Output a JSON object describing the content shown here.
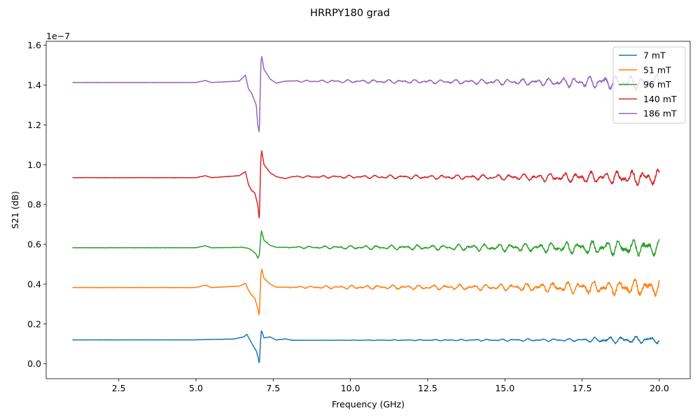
{
  "chart_data": {
    "type": "line",
    "title": "HRRPY180 grad",
    "xlabel": "Frequency (GHz)",
    "ylabel": "S21 (dB)",
    "y_offset_label": "1e−7",
    "xlim": [
      0.15,
      21.0
    ],
    "ylim": [
      -0.075,
      1.62
    ],
    "xticks": [
      2.5,
      5.0,
      7.5,
      10.0,
      12.5,
      15.0,
      17.5,
      20.0
    ],
    "xtick_labels": [
      "2.5",
      "5.0",
      "7.5",
      "10.0",
      "12.5",
      "15.0",
      "17.5",
      "20.0"
    ],
    "yticks": [
      0.0,
      0.2,
      0.4,
      0.6,
      0.8,
      1.0,
      1.2,
      1.4,
      1.6
    ],
    "ytick_labels": [
      "0.0",
      "0.2",
      "0.4",
      "0.6",
      "0.8",
      "1.0",
      "1.2",
      "1.4",
      "1.6"
    ],
    "legend_position": "top-right",
    "grid": false,
    "series": [
      {
        "name": "7 mT",
        "color": "#1f77b4",
        "baseline": 0.12,
        "points": [
          [
            1.0,
            0.12
          ],
          [
            5.0,
            0.12
          ],
          [
            5.3,
            0.122
          ],
          [
            6.2,
            0.124
          ],
          [
            6.55,
            0.135
          ],
          [
            6.65,
            0.148
          ],
          [
            6.75,
            0.118
          ],
          [
            6.85,
            0.09
          ],
          [
            6.95,
            0.065
          ],
          [
            7.0,
            0.04
          ],
          [
            7.05,
            0.0
          ],
          [
            7.1,
            0.14
          ],
          [
            7.12,
            0.168
          ],
          [
            7.2,
            0.13
          ],
          [
            7.4,
            0.135
          ],
          [
            7.6,
            0.12
          ],
          [
            7.9,
            0.125
          ],
          [
            8.1,
            0.118
          ],
          [
            20.0,
            0.12
          ]
        ],
        "osc": [
          [
            8.5,
            0.0
          ],
          [
            14.0,
            0.003
          ],
          [
            17.5,
            0.006
          ],
          [
            18.3,
            0.012
          ],
          [
            20.0,
            0.015
          ]
        ]
      },
      {
        "name": "51 mT",
        "color": "#ff7f0e",
        "baseline": 0.383,
        "points": [
          [
            1.0,
            0.383
          ],
          [
            5.0,
            0.383
          ],
          [
            5.3,
            0.395
          ],
          [
            5.5,
            0.383
          ],
          [
            6.4,
            0.39
          ],
          [
            6.6,
            0.405
          ],
          [
            6.7,
            0.37
          ],
          [
            6.8,
            0.345
          ],
          [
            6.9,
            0.33
          ],
          [
            7.0,
            0.28
          ],
          [
            7.05,
            0.24
          ],
          [
            7.1,
            0.45
          ],
          [
            7.13,
            0.475
          ],
          [
            7.2,
            0.43
          ],
          [
            7.4,
            0.4
          ],
          [
            7.6,
            0.385
          ],
          [
            20.0,
            0.383
          ]
        ],
        "osc": [
          [
            8.0,
            0.003
          ],
          [
            10.0,
            0.007
          ],
          [
            13.0,
            0.009
          ],
          [
            15.5,
            0.014
          ],
          [
            17.0,
            0.022
          ],
          [
            18.5,
            0.028
          ],
          [
            20.0,
            0.033
          ]
        ]
      },
      {
        "name": "96 mT",
        "color": "#2ca02c",
        "baseline": 0.583,
        "points": [
          [
            1.0,
            0.583
          ],
          [
            5.0,
            0.583
          ],
          [
            5.3,
            0.593
          ],
          [
            5.5,
            0.583
          ],
          [
            6.5,
            0.585
          ],
          [
            6.7,
            0.58
          ],
          [
            6.85,
            0.565
          ],
          [
            6.95,
            0.55
          ],
          [
            7.0,
            0.53
          ],
          [
            7.05,
            0.545
          ],
          [
            7.1,
            0.64
          ],
          [
            7.12,
            0.67
          ],
          [
            7.2,
            0.62
          ],
          [
            7.4,
            0.595
          ],
          [
            7.6,
            0.585
          ],
          [
            20.0,
            0.583
          ]
        ],
        "osc": [
          [
            8.0,
            0.003
          ],
          [
            10.0,
            0.007
          ],
          [
            13.0,
            0.01
          ],
          [
            15.5,
            0.016
          ],
          [
            17.0,
            0.022
          ],
          [
            18.5,
            0.028
          ],
          [
            20.0,
            0.032
          ]
        ]
      },
      {
        "name": "140 mT",
        "color": "#d62728",
        "baseline": 0.935,
        "points": [
          [
            1.0,
            0.935
          ],
          [
            5.0,
            0.935
          ],
          [
            5.3,
            0.945
          ],
          [
            5.5,
            0.935
          ],
          [
            6.4,
            0.945
          ],
          [
            6.6,
            0.965
          ],
          [
            6.7,
            0.9
          ],
          [
            6.8,
            0.87
          ],
          [
            6.9,
            0.86
          ],
          [
            7.0,
            0.8
          ],
          [
            7.05,
            0.72
          ],
          [
            7.1,
            1.04
          ],
          [
            7.13,
            1.07
          ],
          [
            7.2,
            1.0
          ],
          [
            7.4,
            0.96
          ],
          [
            7.6,
            0.94
          ],
          [
            7.9,
            0.93
          ],
          [
            8.1,
            0.94
          ],
          [
            20.0,
            0.935
          ]
        ],
        "osc": [
          [
            8.2,
            0.003
          ],
          [
            10.0,
            0.006
          ],
          [
            13.0,
            0.008
          ],
          [
            15.5,
            0.012
          ],
          [
            17.0,
            0.018
          ],
          [
            18.5,
            0.025
          ],
          [
            20.0,
            0.03
          ]
        ]
      },
      {
        "name": "186 mT",
        "color": "#9467bd",
        "baseline": 1.413,
        "points": [
          [
            1.0,
            1.413
          ],
          [
            5.0,
            1.413
          ],
          [
            5.3,
            1.423
          ],
          [
            5.5,
            1.413
          ],
          [
            6.4,
            1.42
          ],
          [
            6.6,
            1.45
          ],
          [
            6.7,
            1.38
          ],
          [
            6.8,
            1.36
          ],
          [
            6.9,
            1.32
          ],
          [
            6.95,
            1.3
          ],
          [
            7.0,
            1.2
          ],
          [
            7.05,
            1.16
          ],
          [
            7.1,
            1.51
          ],
          [
            7.13,
            1.545
          ],
          [
            7.2,
            1.48
          ],
          [
            7.4,
            1.43
          ],
          [
            7.6,
            1.41
          ],
          [
            7.9,
            1.42
          ],
          [
            20.0,
            1.413
          ]
        ],
        "osc": [
          [
            8.0,
            0.003
          ],
          [
            10.0,
            0.006
          ],
          [
            13.0,
            0.008
          ],
          [
            15.5,
            0.012
          ],
          [
            17.0,
            0.018
          ],
          [
            18.5,
            0.025
          ],
          [
            20.0,
            0.03
          ]
        ]
      }
    ]
  }
}
